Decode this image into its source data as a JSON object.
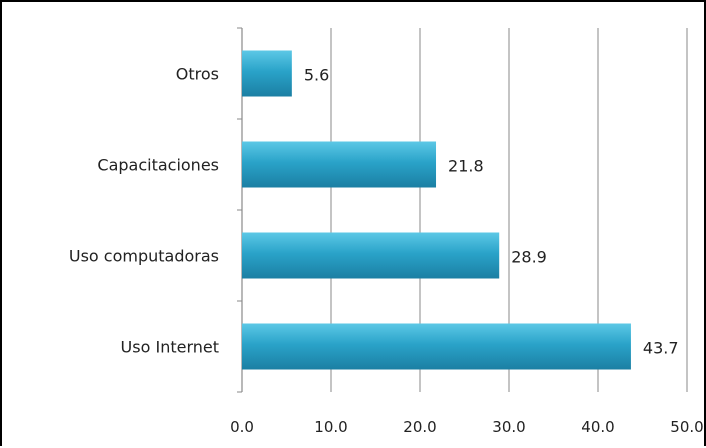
{
  "chart_data": {
    "type": "bar",
    "orientation": "horizontal",
    "categories": [
      "Otros",
      "Capacitaciones",
      "Uso computadoras",
      "Uso Internet"
    ],
    "values": [
      5.6,
      21.8,
      28.9,
      43.7
    ],
    "value_labels": [
      "5.6",
      "21.8",
      "28.9",
      "43.7"
    ],
    "xlim": [
      0,
      50
    ],
    "x_ticks": [
      0,
      10,
      20,
      30,
      40,
      50
    ],
    "x_tick_labels": [
      "0.0",
      "10.0",
      "20.0",
      "30.0",
      "40.0",
      "50.0"
    ],
    "grid": true,
    "legend": "none",
    "colors": {
      "bar_top": "#5cc8e6",
      "bar_mid": "#2aa3c9",
      "bar_bottom": "#1b7fa3",
      "grid": "#8a8a8a",
      "axis": "#8a8a8a"
    }
  }
}
